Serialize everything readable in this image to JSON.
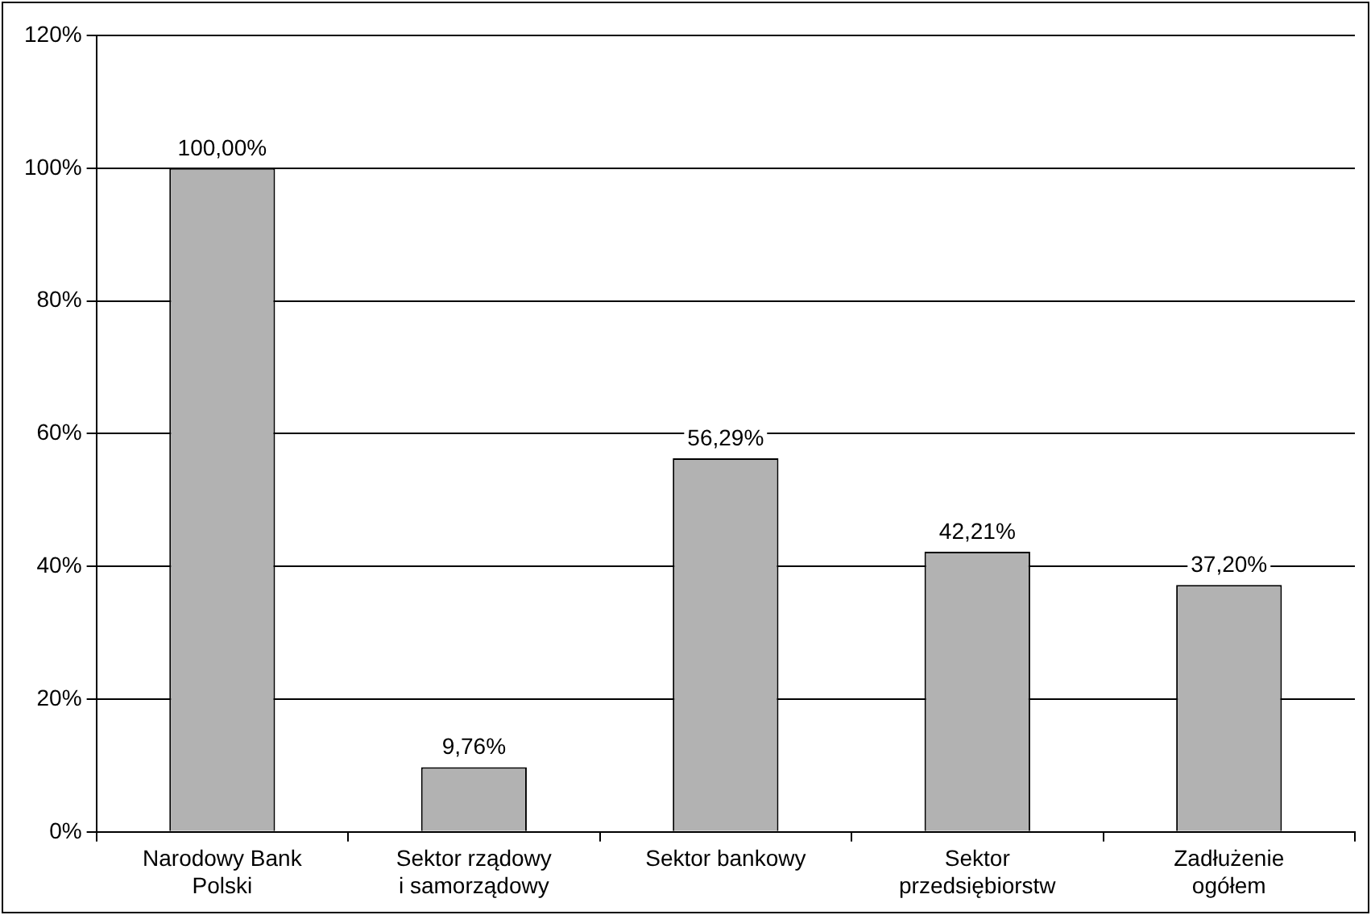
{
  "chart_data": {
    "type": "bar",
    "categories": [
      "Narodowy Bank Polski",
      "Sektor rządowy i samorządowy",
      "Sektor bankowy",
      "Sektor przedsiębiorstw",
      "Zadłużenie ogółem"
    ],
    "values": [
      100,
      9.76,
      56.29,
      42.21,
      37.2
    ],
    "value_labels": [
      "100,00%",
      "9,76%",
      "56,29%",
      "42,21%",
      "37,20%"
    ],
    "color": "#b2b2b2",
    "ylim": [
      0,
      120
    ],
    "yticks": [
      {
        "value": 0,
        "label": "0%"
      },
      {
        "value": 20,
        "label": "20%"
      },
      {
        "value": 40,
        "label": "40%"
      },
      {
        "value": 60,
        "label": "60%"
      },
      {
        "value": 80,
        "label": "80%"
      },
      {
        "value": 100,
        "label": "100%"
      },
      {
        "value": 120,
        "label": "120%"
      }
    ],
    "grid": "y",
    "legend": false
  }
}
